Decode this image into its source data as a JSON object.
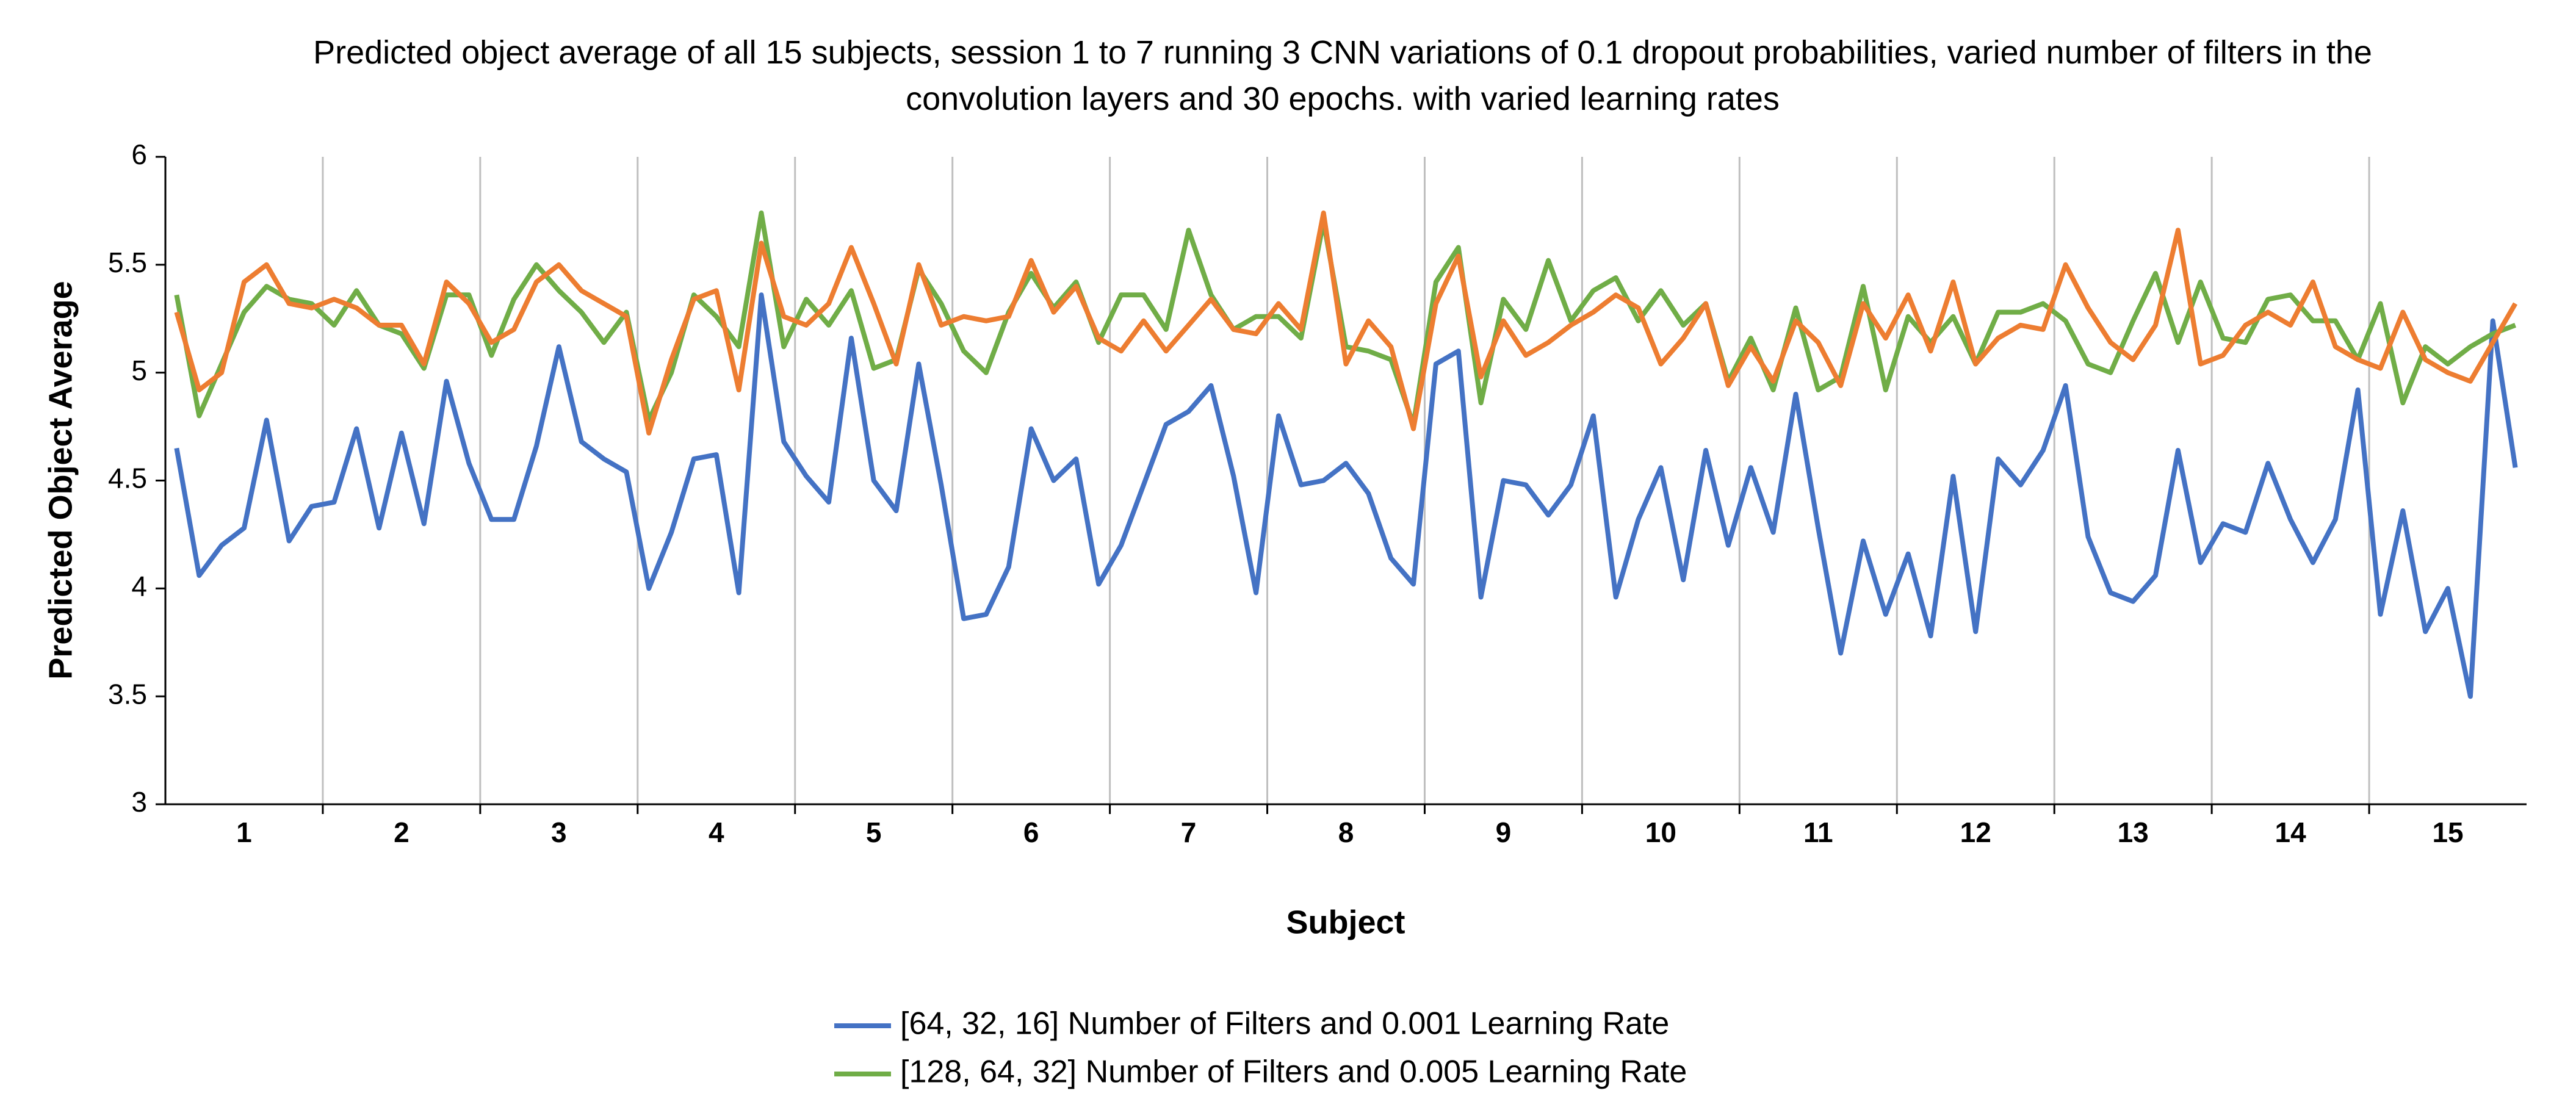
{
  "chart_data": {
    "type": "line",
    "title": "Predicted object average of all 15 subjects, session 1 to 7 running 3 CNN variations of 0.1 dropout probabilities, varied number of filters in the convolution layers and 30 epochs. with varied learning rates",
    "x_label": "Subject",
    "y_label": "Predicted Object Average",
    "categories": [
      null,
      null,
      null,
      "1",
      null,
      null,
      null,
      null,
      null,
      null,
      "2",
      null,
      null,
      null,
      null,
      null,
      null,
      "3",
      null,
      null,
      null,
      null,
      null,
      null,
      "4",
      null,
      null,
      null,
      null,
      null,
      null,
      "5",
      null,
      null,
      null,
      null,
      null,
      null,
      "6",
      null,
      null,
      null,
      null,
      null,
      null,
      "7",
      null,
      null,
      null,
      null,
      null,
      null,
      "8",
      null,
      null,
      null,
      null,
      null,
      null,
      "9",
      null,
      null,
      null,
      null,
      null,
      null,
      "10",
      null,
      null,
      null,
      null,
      null,
      null,
      "11",
      null,
      null,
      null,
      null,
      null,
      null,
      "12",
      null,
      null,
      null,
      null,
      null,
      null,
      "13",
      null,
      null,
      null,
      null,
      null,
      null,
      "14",
      null,
      null,
      null,
      null,
      null,
      null,
      "15",
      null,
      null,
      null
    ],
    "ylim": [
      3,
      6
    ],
    "yticks": [
      3,
      3.5,
      4,
      4.5,
      5,
      5.5,
      6
    ],
    "grid": "x",
    "series": [
      {
        "name": "[64, 32, 16] Number of Filters and 0.001 Learning Rate",
        "color": "#4472c4",
        "values": [
          4.65,
          4.06,
          4.2,
          4.28,
          4.78,
          4.22,
          4.38,
          4.4,
          4.74,
          4.28,
          4.72,
          4.3,
          4.96,
          4.58,
          4.32,
          4.32,
          4.66,
          5.12,
          4.68,
          4.6,
          4.54,
          4.0,
          4.26,
          4.6,
          4.62,
          3.98,
          5.36,
          4.68,
          4.52,
          4.4,
          5.16,
          4.5,
          4.36,
          5.04,
          4.48,
          3.86,
          3.88,
          4.1,
          4.74,
          4.5,
          4.6,
          4.02,
          4.2,
          4.48,
          4.76,
          4.82,
          4.94,
          4.52,
          3.98,
          4.8,
          4.48,
          4.5,
          4.58,
          4.44,
          4.14,
          4.02,
          5.04,
          5.1,
          3.96,
          4.5,
          4.48,
          4.34,
          4.48,
          4.8,
          3.96,
          4.32,
          4.56,
          4.04,
          4.64,
          4.2,
          4.56,
          4.26,
          4.9,
          4.28,
          3.7,
          4.22,
          3.88,
          4.16,
          3.78,
          4.52,
          3.8,
          4.6,
          4.48,
          4.64,
          4.94,
          4.24,
          3.98,
          3.94,
          4.06,
          4.64,
          4.12,
          4.3,
          4.26,
          4.58,
          4.32,
          4.12,
          4.32,
          4.92,
          3.88,
          4.36,
          3.8,
          4.0,
          3.5,
          5.24,
          4.56
        ]
      },
      {
        "name": "[128, 64, 32] Number of Filters and 0.005 Learning Rate",
        "color": "#70ad47",
        "values": [
          5.36,
          4.8,
          5.04,
          5.28,
          5.4,
          5.34,
          5.32,
          5.22,
          5.38,
          5.22,
          5.18,
          5.02,
          5.36,
          5.36,
          5.08,
          5.34,
          5.5,
          5.38,
          5.28,
          5.14,
          5.28,
          4.78,
          5.0,
          5.36,
          5.26,
          5.12,
          5.74,
          5.12,
          5.34,
          5.22,
          5.38,
          5.02,
          5.06,
          5.48,
          5.32,
          5.1,
          5.0,
          5.28,
          5.46,
          5.3,
          5.42,
          5.14,
          5.36,
          5.36,
          5.2,
          5.66,
          5.36,
          5.2,
          5.26,
          5.26,
          5.16,
          5.7,
          5.12,
          5.1,
          5.06,
          4.76,
          5.42,
          5.58,
          4.86,
          5.34,
          5.2,
          5.52,
          5.24,
          5.38,
          5.44,
          5.24,
          5.38,
          5.22,
          5.32,
          4.96,
          5.16,
          4.92,
          5.3,
          4.92,
          4.98,
          5.4,
          4.92,
          5.26,
          5.14,
          5.26,
          5.04,
          5.28,
          5.28,
          5.32,
          5.24,
          5.04,
          5.0,
          5.24,
          5.46,
          5.14,
          5.42,
          5.16,
          5.14,
          5.34,
          5.36,
          5.24,
          5.24,
          5.06,
          5.32,
          4.86,
          5.12,
          5.04,
          5.12,
          5.18,
          5.22
        ]
      },
      {
        "color": "#ed7d31",
        "values": [
          5.28,
          4.92,
          5.0,
          5.42,
          5.5,
          5.32,
          5.3,
          5.34,
          5.3,
          5.22,
          5.22,
          5.04,
          5.42,
          5.32,
          5.14,
          5.2,
          5.42,
          5.5,
          5.38,
          5.32,
          5.26,
          4.72,
          5.06,
          5.34,
          5.38,
          4.92,
          5.6,
          5.26,
          5.22,
          5.32,
          5.58,
          5.32,
          5.04,
          5.5,
          5.22,
          5.26,
          5.24,
          5.26,
          5.52,
          5.28,
          5.4,
          5.16,
          5.1,
          5.24,
          5.1,
          5.22,
          5.34,
          5.2,
          5.18,
          5.32,
          5.2,
          5.74,
          5.04,
          5.24,
          5.12,
          4.74,
          5.32,
          5.54,
          4.98,
          5.24,
          5.08,
          5.14,
          5.22,
          5.28,
          5.36,
          5.3,
          5.04,
          5.16,
          5.32,
          4.94,
          5.12,
          4.96,
          5.24,
          5.14,
          4.94,
          5.32,
          5.16,
          5.36,
          5.1,
          5.42,
          5.04,
          5.16,
          5.22,
          5.2,
          5.5,
          5.3,
          5.14,
          5.06,
          5.22,
          5.66,
          5.04,
          5.08,
          5.22,
          5.28,
          5.22,
          5.42,
          5.12,
          5.06,
          5.02,
          5.28,
          5.06,
          5.0,
          4.96,
          5.14,
          5.32
        ]
      }
    ]
  }
}
